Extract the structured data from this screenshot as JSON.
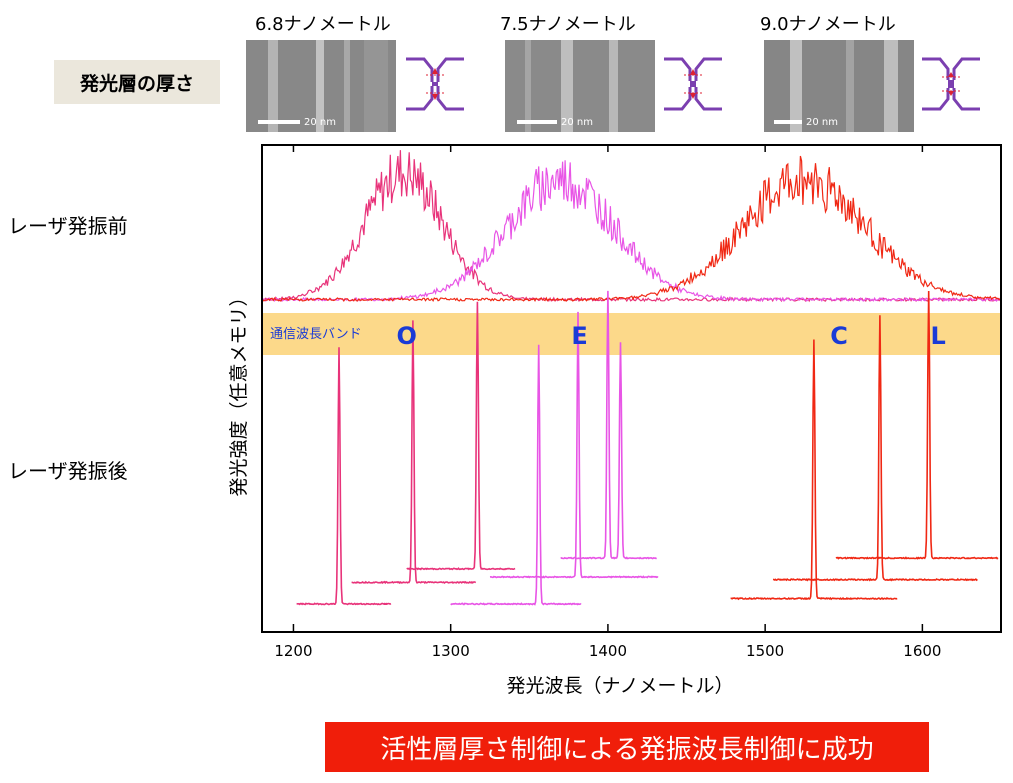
{
  "header": {
    "thickness_label": "発光層の厚さ",
    "samples": [
      {
        "label": "6.8ナノメートル",
        "scale": "20 nm"
      },
      {
        "label": "7.5ナノメートル",
        "scale": "20 nm"
      },
      {
        "label": "9.0ナノメートル",
        "scale": "20 nm"
      }
    ]
  },
  "rows": {
    "before": "レーザ発振前",
    "after": "レーザ発振後"
  },
  "footer_text": "活性層厚さ制御による発振波長制御に成功",
  "colors": {
    "pink": "#e8337a",
    "magenta": "#e855e6",
    "red": "#f02814",
    "band": "#fcd98a",
    "band_text": "#1a3bd6",
    "footer_bg": "#f01e0a",
    "device_purple": "#7b3fb0"
  },
  "chart_data": {
    "type": "line",
    "title": "",
    "xlabel": "発光波長（ナノメートル）",
    "ylabel": "発光強度（任意メモリ）",
    "xlim": [
      1180,
      1650
    ],
    "xticks": [
      1200,
      1300,
      1400,
      1500,
      1600
    ],
    "band_label": "通信波長バンド",
    "bands": [
      {
        "name": "O",
        "x": 1272
      },
      {
        "name": "E",
        "x": 1382
      },
      {
        "name": "C",
        "x": 1547
      },
      {
        "name": "L",
        "x": 1610
      }
    ],
    "before_series": [
      {
        "color_key": "pink",
        "center": 1270,
        "width": 35,
        "peak": 0.85
      },
      {
        "color_key": "magenta",
        "center": 1370,
        "width": 48,
        "peak": 0.8
      },
      {
        "color_key": "red",
        "center": 1525,
        "width": 55,
        "peak": 0.8
      }
    ],
    "after_series": [
      {
        "color_key": "pink",
        "range": [
          1202,
          1262
        ],
        "baseline": 0.05,
        "peak_x": 1229,
        "peak": 0.95
      },
      {
        "color_key": "pink",
        "range": [
          1237,
          1316
        ],
        "baseline": 0.13,
        "peak_x": 1276,
        "peak": 0.97
      },
      {
        "color_key": "pink",
        "range": [
          1272,
          1341
        ],
        "baseline": 0.18,
        "peak_x": 1317,
        "peak": 0.99
      },
      {
        "color_key": "magenta",
        "range": [
          1300,
          1383
        ],
        "baseline": 0.05,
        "peak_x": 1356,
        "peak": 0.96
      },
      {
        "color_key": "magenta",
        "range": [
          1325,
          1432
        ],
        "baseline": 0.15,
        "peak_x": 1381,
        "peak": 0.98
      },
      {
        "color_key": "magenta",
        "range": [
          1370,
          1431
        ],
        "baseline": 0.22,
        "peak_x": 1400,
        "peak": 0.99,
        "peak2_x": 1408,
        "peak2": 0.8
      },
      {
        "color_key": "red",
        "range": [
          1478,
          1584
        ],
        "baseline": 0.07,
        "peak_x": 1531,
        "peak": 0.96
      },
      {
        "color_key": "red",
        "range": [
          1505,
          1635
        ],
        "baseline": 0.14,
        "peak_x": 1573,
        "peak": 0.98
      },
      {
        "color_key": "red",
        "range": [
          1545,
          1648
        ],
        "baseline": 0.22,
        "peak_x": 1604,
        "peak": 0.99
      }
    ]
  }
}
